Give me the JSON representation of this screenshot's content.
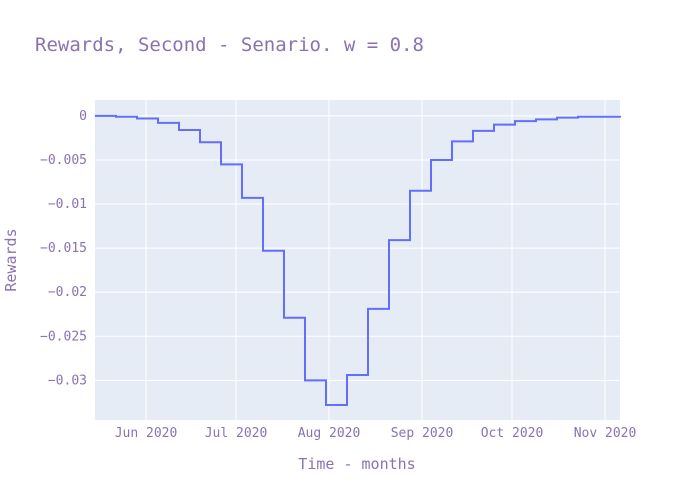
{
  "chart_data": {
    "type": "line",
    "title": "Rewards, Second - Senario. w = 0.8",
    "xlabel": "Time - months",
    "ylabel": "Rewards",
    "x_tick_labels": [
      "Jun 2020",
      "Jul 2020",
      "Aug 2020",
      "Sep 2020",
      "Oct 2020",
      "Nov 2020"
    ],
    "x_tick_dates": [
      "2020-06-01",
      "2020-07-01",
      "2020-08-01",
      "2020-09-01",
      "2020-10-01",
      "2020-11-01"
    ],
    "xlim": [
      "2020-05-15",
      "2020-11-06"
    ],
    "y_tick_labels": [
      "0",
      "−0.005",
      "−0.01",
      "−0.015",
      "−0.02",
      "−0.025",
      "−0.03"
    ],
    "y_tick_values": [
      0,
      -0.005,
      -0.01,
      -0.015,
      -0.02,
      -0.025,
      -0.03
    ],
    "ylim": [
      -0.0345,
      0.0018
    ],
    "grid": true,
    "line_shape": "step-after",
    "series": [
      {
        "color": "#636efa",
        "x": [
          "2020-05-15",
          "2020-05-22",
          "2020-05-29",
          "2020-06-05",
          "2020-06-12",
          "2020-06-19",
          "2020-06-26",
          "2020-07-03",
          "2020-07-10",
          "2020-07-17",
          "2020-07-24",
          "2020-07-31",
          "2020-08-07",
          "2020-08-14",
          "2020-08-21",
          "2020-08-28",
          "2020-09-04",
          "2020-09-11",
          "2020-09-18",
          "2020-09-25",
          "2020-10-02",
          "2020-10-09",
          "2020-10-16",
          "2020-10-23",
          "2020-10-30",
          "2020-11-06"
        ],
        "values": [
          0.0,
          -0.0001,
          -0.0003,
          -0.0008,
          -0.0016,
          -0.003,
          -0.0055,
          -0.0093,
          -0.0153,
          -0.0229,
          -0.03,
          -0.0328,
          -0.0294,
          -0.0219,
          -0.0141,
          -0.0085,
          -0.005,
          -0.0029,
          -0.0017,
          -0.001,
          -0.0006,
          -0.0004,
          -0.0002,
          -0.0001,
          -0.0001,
          0.0
        ]
      }
    ]
  }
}
